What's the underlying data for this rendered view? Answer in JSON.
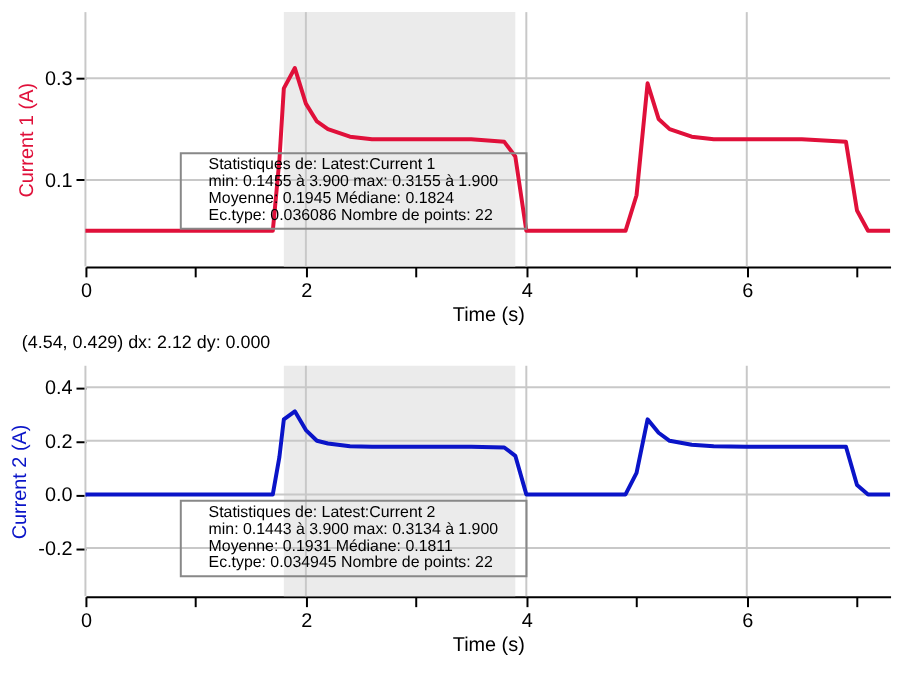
{
  "chart_data": [
    {
      "type": "line",
      "xlabel": "Time (s)",
      "ylabel": "Current 1 (A)",
      "xlim": [
        0,
        7.3
      ],
      "ylim": [
        -0.07,
        0.43
      ],
      "xticks": [
        0,
        {
          "value": 1,
          "label": null
        },
        2,
        {
          "value": 3,
          "label": null
        },
        4,
        {
          "value": 5,
          "label": null
        },
        6,
        {
          "value": 7,
          "label": null
        }
      ],
      "yticks": [
        0.1,
        0.3
      ],
      "grid": true,
      "legend": false,
      "marker": "none",
      "line_style": "solid",
      "bands": [
        {
          "axis": "x",
          "from": 1.8,
          "to": 3.9,
          "color": "#ebebeb"
        }
      ],
      "series": [
        {
          "color": "#e0103a",
          "x": [
            0,
            1.7,
            1.76,
            1.8,
            1.9,
            2.0,
            2.1,
            2.2,
            2.4,
            2.6,
            3.0,
            3.5,
            3.8,
            3.9,
            4.0,
            4.9,
            5.0,
            5.1,
            5.2,
            5.3,
            5.5,
            5.7,
            6.0,
            6.5,
            6.9,
            7.0,
            7.1,
            7.3
          ],
          "values": [
            0,
            0,
            0.14,
            0.28,
            0.32,
            0.25,
            0.215,
            0.2,
            0.185,
            0.18,
            0.18,
            0.18,
            0.175,
            0.146,
            0,
            0,
            0.07,
            0.29,
            0.22,
            0.2,
            0.185,
            0.18,
            0.18,
            0.18,
            0.175,
            0.04,
            0,
            0
          ]
        }
      ],
      "annotations": [
        "Statistiques de: Latest:Current 1",
        "min: 0.1455 à 3.900 max: 0.3155 à 1.900",
        "Moyenne: 0.1945 Médiane: 0.1824",
        "Ec.type: 0.036086 Nombre de points: 22",
        "(4.54, 0.429) dx: 2.12 dy: 0.000"
      ]
    },
    {
      "type": "line",
      "xlabel": "Time (s)",
      "ylabel": "Current 2 (A)",
      "xlim": [
        0,
        7.3
      ],
      "ylim": [
        -0.38,
        0.48
      ],
      "xticks": [
        0,
        {
          "value": 1,
          "label": null
        },
        2,
        {
          "value": 3,
          "label": null
        },
        4,
        {
          "value": 5,
          "label": null
        },
        6,
        {
          "value": 7,
          "label": null
        }
      ],
      "yticks": [
        -0.2,
        {
          "value": 0,
          "label": "0.0"
        },
        0.2,
        0.4
      ],
      "grid": true,
      "legend": false,
      "marker": "none",
      "line_style": "solid",
      "bands": [
        {
          "axis": "x",
          "from": 1.8,
          "to": 3.9,
          "color": "#ebebeb"
        }
      ],
      "series": [
        {
          "color": "#0a14c8",
          "x": [
            0,
            1.7,
            1.76,
            1.8,
            1.9,
            2.0,
            2.1,
            2.2,
            2.4,
            2.6,
            3.0,
            3.5,
            3.8,
            3.9,
            4.0,
            4.9,
            5.0,
            5.1,
            5.2,
            5.3,
            5.5,
            5.7,
            6.0,
            6.5,
            6.9,
            7.0,
            7.1,
            7.3
          ],
          "values": [
            0,
            0,
            0.14,
            0.28,
            0.31,
            0.24,
            0.2,
            0.19,
            0.18,
            0.178,
            0.178,
            0.178,
            0.175,
            0.144,
            0,
            0,
            0.08,
            0.28,
            0.23,
            0.2,
            0.185,
            0.18,
            0.178,
            0.178,
            0.178,
            0.035,
            0,
            0
          ]
        }
      ],
      "annotations": [
        "Statistiques de: Latest:Current 2",
        "min: 0.1443 à 3.900 max: 0.3134 à 1.900",
        "Moyenne: 0.1931 Médiane: 0.1811",
        "Ec.type: 0.034945 Nombre de points: 22"
      ]
    }
  ]
}
